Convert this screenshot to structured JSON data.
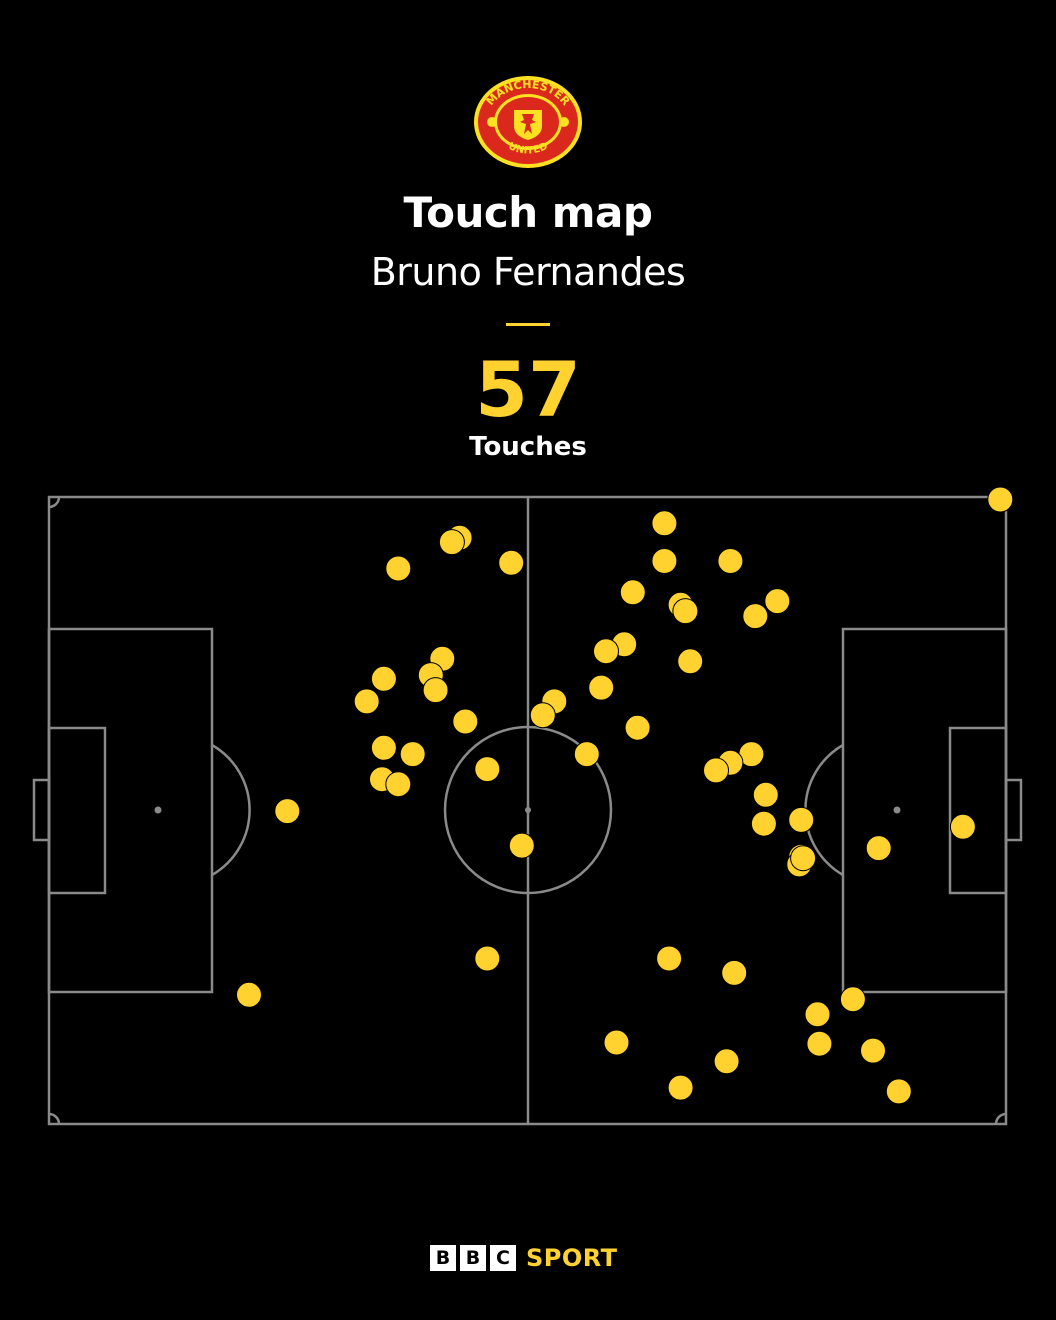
{
  "header": {
    "crest_top_text": "MANCHESTER",
    "crest_bottom_text": "UNITED",
    "title": "Touch map",
    "subtitle": "Bruno Fernandes",
    "stat_value": "57",
    "stat_label": "Touches"
  },
  "footer": {
    "bbc_letters": [
      "B",
      "B",
      "C"
    ],
    "sport_label": "SPORT"
  },
  "colors": {
    "background": "#000000",
    "touch": "#FFD230",
    "pitch_lines": "#8a8a8a",
    "accent": "#FFD230",
    "crest_red": "#DA291C",
    "crest_gold": "#FBE122"
  },
  "chart_data": {
    "type": "scatter",
    "title": "Touch map",
    "subtitle": "Bruno Fernandes",
    "x_range": [
      0,
      100
    ],
    "y_range": [
      0,
      100
    ],
    "grid": false,
    "legend": "none",
    "points": [
      [
        99.4,
        0.4
      ],
      [
        42.9,
        6.5
      ],
      [
        42.1,
        7.2
      ],
      [
        48.3,
        10.5
      ],
      [
        36.5,
        11.4
      ],
      [
        64.3,
        4.2
      ],
      [
        64.3,
        10.2
      ],
      [
        71.2,
        10.2
      ],
      [
        61.0,
        15.2
      ],
      [
        66.0,
        17.2
      ],
      [
        66.5,
        18.2
      ],
      [
        76.1,
        16.6
      ],
      [
        73.8,
        19.0
      ],
      [
        60.1,
        23.5
      ],
      [
        58.2,
        24.6
      ],
      [
        67.0,
        26.2
      ],
      [
        57.7,
        30.4
      ],
      [
        41.1,
        25.8
      ],
      [
        39.9,
        28.4
      ],
      [
        35.0,
        29.0
      ],
      [
        40.4,
        30.8
      ],
      [
        33.2,
        32.6
      ],
      [
        52.8,
        32.6
      ],
      [
        51.6,
        34.8
      ],
      [
        43.5,
        35.8
      ],
      [
        61.5,
        36.8
      ],
      [
        35.0,
        40.0
      ],
      [
        38.0,
        41.0
      ],
      [
        56.2,
        41.0
      ],
      [
        73.4,
        41.0
      ],
      [
        71.2,
        42.4
      ],
      [
        69.7,
        43.6
      ],
      [
        45.8,
        43.4
      ],
      [
        34.8,
        45.0
      ],
      [
        36.5,
        45.8
      ],
      [
        74.9,
        47.5
      ],
      [
        24.9,
        50.1
      ],
      [
        78.6,
        51.5
      ],
      [
        74.7,
        52.1
      ],
      [
        86.7,
        56.0
      ],
      [
        95.5,
        52.6
      ],
      [
        49.4,
        55.6
      ],
      [
        78.6,
        57.4
      ],
      [
        78.4,
        58.6
      ],
      [
        45.8,
        73.6
      ],
      [
        64.8,
        73.6
      ],
      [
        71.6,
        75.9
      ],
      [
        20.9,
        79.4
      ],
      [
        84.0,
        80.1
      ],
      [
        80.3,
        82.5
      ],
      [
        59.3,
        87.0
      ],
      [
        80.5,
        87.2
      ],
      [
        86.1,
        88.3
      ],
      [
        70.8,
        90.0
      ],
      [
        66.0,
        94.2
      ],
      [
        88.8,
        94.8
      ],
      [
        78.8,
        57.6
      ]
    ]
  }
}
